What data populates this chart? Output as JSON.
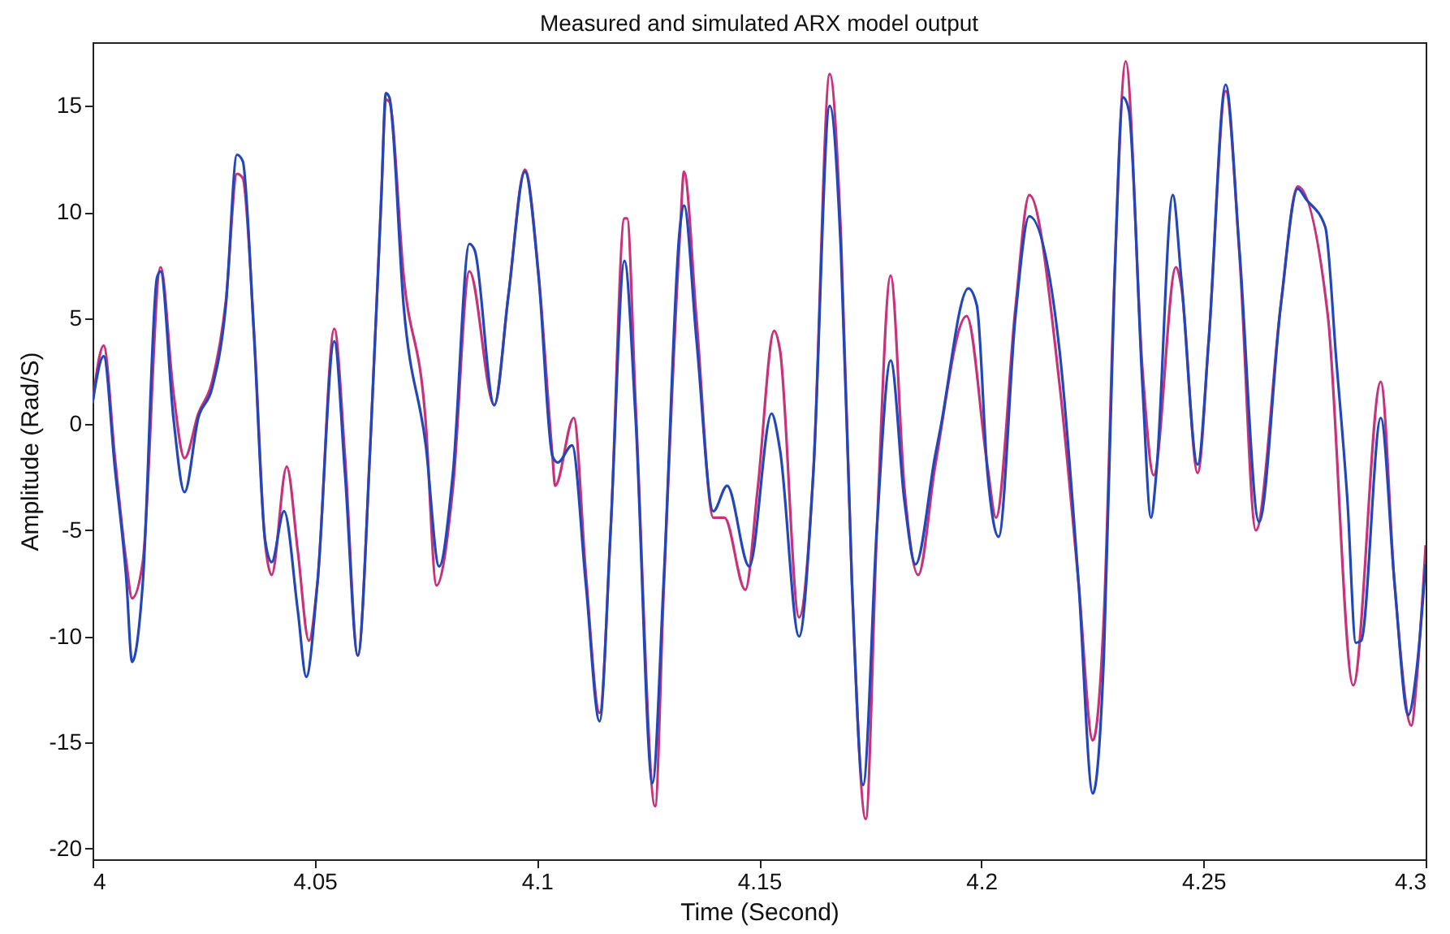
{
  "chart_data": {
    "type": "line",
    "title": "Measured and simulated ARX model output",
    "xlabel": "Time (Second)",
    "ylabel": "Amplitude (Rad/S)",
    "xlim": [
      4,
      4.3
    ],
    "xticks": [
      4,
      4.05,
      4.1,
      4.15,
      4.2,
      4.25,
      4.3
    ],
    "ylim": [
      -20.5,
      18
    ],
    "yticks": [
      -20,
      -15,
      -10,
      -5,
      0,
      5,
      10,
      15
    ],
    "grid": false,
    "marker": "none",
    "line_style": "solid",
    "series": [
      {
        "color": "#c8327a",
        "x": [
          4.0,
          4.0025,
          4.005,
          4.0076,
          4.0089,
          4.0113,
          4.0153,
          4.0182,
          4.0207,
          4.0238,
          4.0269,
          4.03,
          4.0325,
          4.0338,
          4.0363,
          4.0388,
          4.0403,
          4.0437,
          4.0462,
          4.0487,
          4.0506,
          4.0544,
          4.0568,
          4.0597,
          4.0625,
          4.065,
          4.066,
          4.0668,
          4.07,
          4.0749,
          4.0774,
          4.0811,
          4.0848,
          4.0904,
          4.0936,
          4.0973,
          4.1004,
          4.1035,
          4.1041,
          4.1083,
          4.111,
          4.1141,
          4.1166,
          4.1197,
          4.1203,
          4.1222,
          4.1266,
          4.1285,
          4.1322,
          4.1331,
          4.1359,
          4.1397,
          4.1422,
          4.1469,
          4.1497,
          4.1534,
          4.1547,
          4.159,
          4.1622,
          4.1659,
          4.1684,
          4.1709,
          4.174,
          4.1765,
          4.1796,
          4.1827,
          4.1858,
          4.1896,
          4.1967,
          4.2014,
          4.2033,
          4.2077,
          4.2108,
          4.2176,
          4.2219,
          4.2251,
          4.2276,
          4.23,
          4.2325,
          4.2363,
          4.2388,
          4.2438,
          4.245,
          4.2487,
          4.2512,
          4.255,
          4.2581,
          4.2618,
          4.2674,
          4.2712,
          4.278,
          4.2837,
          4.2899,
          4.293,
          4.2968,
          4.298,
          4.3
        ],
        "values": [
          1.0,
          3.7,
          -1.5,
          -6.5,
          -8.2,
          -6.5,
          7.4,
          1.5,
          -1.6,
          0.5,
          2.0,
          5.8,
          11.8,
          11.6,
          4.5,
          -5.5,
          -7.1,
          -2.0,
          -6.0,
          -10.2,
          -7.5,
          4.5,
          -1.5,
          -10.9,
          -1.0,
          10.8,
          15.3,
          15.2,
          7.0,
          0.3,
          -7.6,
          -3.0,
          7.2,
          0.9,
          6.1,
          12.0,
          7.0,
          -1.5,
          -2.9,
          0.3,
          -7.0,
          -13.6,
          -5.0,
          9.7,
          9.7,
          1.0,
          -18.0,
          -8.0,
          9.0,
          11.9,
          5.0,
          -4.4,
          -4.4,
          -7.8,
          -3.0,
          4.4,
          3.5,
          -9.1,
          -2.3,
          16.5,
          9.0,
          -7.5,
          -18.6,
          -5.0,
          7.0,
          -3.0,
          -7.1,
          -2.0,
          5.1,
          -2.0,
          -4.4,
          5.5,
          10.8,
          1.9,
          -7.5,
          -14.9,
          -9.0,
          7.0,
          17.1,
          2.5,
          -2.4,
          7.4,
          6.5,
          -2.3,
          4.0,
          15.7,
          8.0,
          -5.0,
          5.6,
          11.2,
          5.1,
          -12.3,
          2.0,
          -7.5,
          -14.2,
          -12.0,
          -5.7
        ]
      },
      {
        "color": "#2347b8",
        "x": [
          4.0,
          4.0025,
          4.005,
          4.0076,
          4.0089,
          4.0113,
          4.0145,
          4.0153,
          4.0182,
          4.0207,
          4.0238,
          4.0269,
          4.03,
          4.0325,
          4.0338,
          4.0363,
          4.0388,
          4.0403,
          4.0431,
          4.0462,
          4.0481,
          4.0506,
          4.0544,
          4.0568,
          4.0597,
          4.0625,
          4.065,
          4.066,
          4.0668,
          4.07,
          4.075,
          4.078,
          4.0811,
          4.0848,
          4.086,
          4.0904,
          4.0936,
          4.0973,
          4.1004,
          4.1035,
          4.1047,
          4.1079,
          4.111,
          4.1141,
          4.1166,
          4.1197,
          4.1222,
          4.126,
          4.1285,
          4.1322,
          4.1331,
          4.1359,
          4.1397,
          4.1428,
          4.1478,
          4.1528,
          4.1547,
          4.159,
          4.1622,
          4.1659,
          4.1684,
          4.1709,
          4.1734,
          4.1765,
          4.1796,
          4.1827,
          4.1852,
          4.1896,
          4.1908,
          4.1971,
          4.199,
          4.2014,
          4.2039,
          4.2077,
          4.2108,
          4.2176,
          4.2219,
          4.2251,
          4.2276,
          4.23,
          4.2319,
          4.2332,
          4.2363,
          4.2382,
          4.2394,
          4.2431,
          4.245,
          4.2487,
          4.2512,
          4.255,
          4.2581,
          4.2625,
          4.2674,
          4.2712,
          4.2731,
          4.2774,
          4.2799,
          4.2824,
          4.2843,
          4.2855,
          4.2899,
          4.293,
          4.2961,
          4.298,
          4.3
        ],
        "values": [
          1.0,
          3.2,
          -2.0,
          -7.3,
          -11.2,
          -7.5,
          6.9,
          7.2,
          0.3,
          -3.2,
          0.3,
          1.7,
          5.6,
          12.7,
          12.4,
          4.3,
          -5.4,
          -6.5,
          -4.1,
          -8.8,
          -11.9,
          -7.5,
          3.9,
          -2.3,
          -10.9,
          -1.0,
          10.8,
          15.6,
          15.4,
          5.6,
          -1.0,
          -6.7,
          -2.3,
          8.5,
          8.2,
          0.9,
          6.1,
          11.9,
          6.9,
          -1.5,
          -1.8,
          -1.0,
          -7.5,
          -14.0,
          -4.9,
          7.7,
          0.3,
          -16.9,
          -7.5,
          9.3,
          10.3,
          4.0,
          -4.1,
          -2.9,
          -6.7,
          0.5,
          -1.2,
          -10.0,
          -2.3,
          15.0,
          8.2,
          -7.5,
          -17.0,
          -4.9,
          3.0,
          -3.6,
          -6.6,
          -1.5,
          -0.2,
          6.4,
          5.6,
          -2.3,
          -5.3,
          5.1,
          9.8,
          3.5,
          -7.5,
          -17.4,
          -10.9,
          6.9,
          15.4,
          14.8,
          1.7,
          -4.4,
          -2.3,
          10.8,
          6.9,
          -1.9,
          4.0,
          16.0,
          8.2,
          -4.6,
          5.6,
          11.1,
          10.6,
          9.3,
          3.0,
          -3.6,
          -10.3,
          -10.2,
          0.3,
          -7.5,
          -13.7,
          -11.5,
          -6.6
        ]
      }
    ]
  }
}
